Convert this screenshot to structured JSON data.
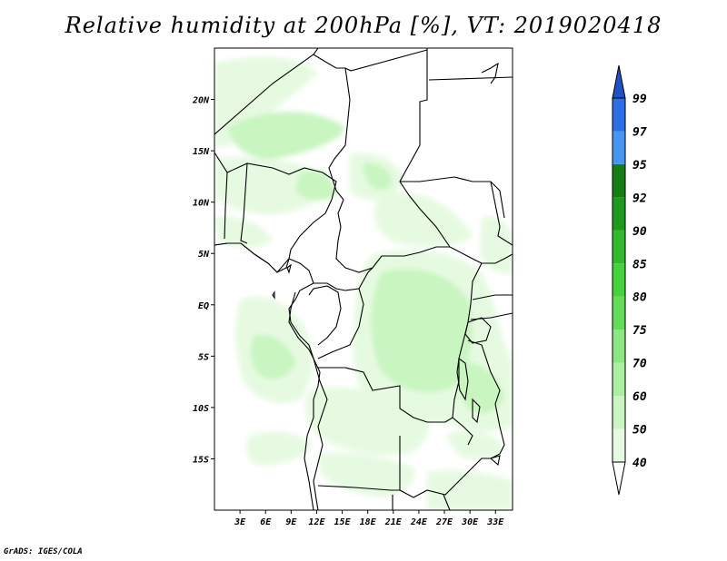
{
  "title": "Relative humidity at 200hPa [%], VT: 2019020418",
  "credit": "GrADS: IGES/COLA",
  "map": {
    "lon_range": [
      0,
      35
    ],
    "lat_range": [
      -20,
      25
    ],
    "lat_ticks": [
      {
        "value": 20,
        "label": "20N"
      },
      {
        "value": 15,
        "label": "15N"
      },
      {
        "value": 10,
        "label": "10N"
      },
      {
        "value": 5,
        "label": "5N"
      },
      {
        "value": 0,
        "label": "EQ"
      },
      {
        "value": -5,
        "label": "5S"
      },
      {
        "value": -10,
        "label": "10S"
      },
      {
        "value": -15,
        "label": "15S"
      }
    ],
    "lon_ticks": [
      {
        "value": 3,
        "label": "3E"
      },
      {
        "value": 6,
        "label": "6E"
      },
      {
        "value": 9,
        "label": "9E"
      },
      {
        "value": 12,
        "label": "12E"
      },
      {
        "value": 15,
        "label": "15E"
      },
      {
        "value": 18,
        "label": "18E"
      },
      {
        "value": 21,
        "label": "21E"
      },
      {
        "value": 24,
        "label": "24E"
      },
      {
        "value": 27,
        "label": "27E"
      },
      {
        "value": 30,
        "label": "30E"
      },
      {
        "value": 33,
        "label": "33E"
      }
    ]
  },
  "colorbar": {
    "levels": [
      "40",
      "50",
      "60",
      "70",
      "75",
      "80",
      "85",
      "90",
      "92",
      "95",
      "97",
      "99"
    ],
    "colors": [
      "#ffffff",
      "#e6fae1",
      "#c8f5c0",
      "#aaf0a0",
      "#8ce682",
      "#64dc5a",
      "#46d23c",
      "#32b92d",
      "#1e9b1e",
      "#147d14",
      "#4696f0",
      "#2d6ee6",
      "#1e50c8"
    ]
  },
  "humidity_colors": {
    "light": "#e6fae1",
    "medium": "#c8f5c0",
    "strong": "#aaf0a0"
  }
}
